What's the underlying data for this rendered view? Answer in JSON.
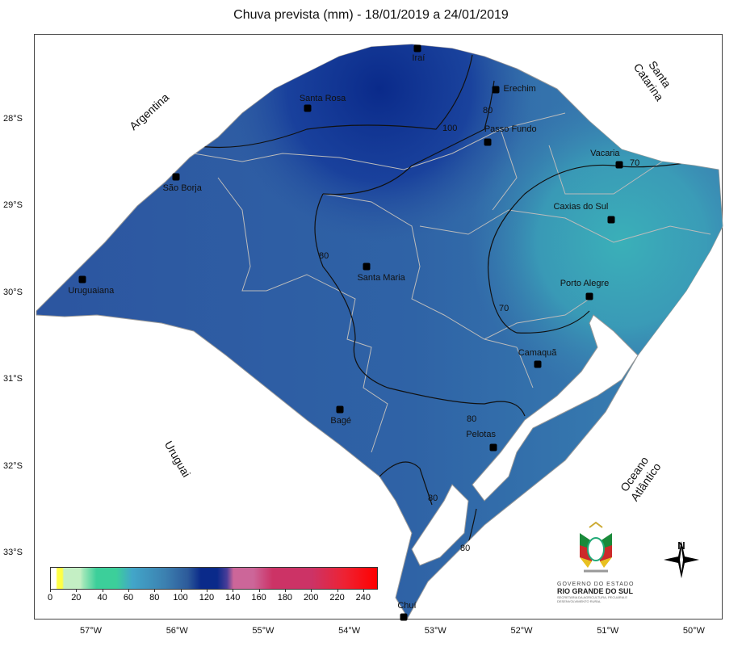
{
  "title": "Chuva prevista (mm) - 18/01/2019 a 24/01/2019",
  "lon_ticks": [
    "57°W",
    "56°W",
    "55°W",
    "54°W",
    "53°W",
    "52°W",
    "51°W",
    "50°W"
  ],
  "lat_ticks": [
    "28°S",
    "29°S",
    "30°S",
    "31°S",
    "32°S",
    "33°S"
  ],
  "regions": {
    "argentina": "Argentina",
    "santa_catarina": "Santa Catarina",
    "uruguai": "Uruguai",
    "oceano": "Oceano Atlântico"
  },
  "cities": [
    {
      "name": "Iraí",
      "lon": 53.21,
      "lat": 27.18
    },
    {
      "name": "Santa Rosa",
      "lon": 54.49,
      "lat": 27.87
    },
    {
      "name": "Erechim",
      "lon": 52.3,
      "lat": 27.66
    },
    {
      "name": "Passo Fundo",
      "lon": 52.4,
      "lat": 28.26
    },
    {
      "name": "Vacaria",
      "lon": 50.87,
      "lat": 28.52
    },
    {
      "name": "São Borja",
      "lon": 56.02,
      "lat": 28.66
    },
    {
      "name": "Caxias do Sul",
      "lon": 50.96,
      "lat": 29.15
    },
    {
      "name": "Santa Maria",
      "lon": 53.8,
      "lat": 29.69
    },
    {
      "name": "Uruguaiana",
      "lon": 57.1,
      "lat": 29.84
    },
    {
      "name": "Porto Alegre",
      "lon": 51.22,
      "lat": 30.04
    },
    {
      "name": "Camaquã",
      "lon": 51.82,
      "lat": 30.82
    },
    {
      "name": "Bagé",
      "lon": 54.11,
      "lat": 31.34
    },
    {
      "name": "Pelotas",
      "lon": 52.33,
      "lat": 31.78
    },
    {
      "name": "Chuí",
      "lon": 53.37,
      "lat": 33.74
    }
  ],
  "contours": [
    "100",
    "80",
    "80",
    "70",
    "70",
    "80",
    "80",
    "80"
  ],
  "colorbar": {
    "ticks": [
      "0",
      "20",
      "40",
      "60",
      "80",
      "100",
      "120",
      "140",
      "160",
      "180",
      "200",
      "220",
      "240"
    ],
    "range": [
      0,
      250
    ]
  },
  "logo": {
    "line1": "GOVERNO DO ESTADO",
    "line2": "RIO GRANDE DO SUL",
    "line3": "SECRETARIA DA AGRICULTURA, PECUÁRIA E DESENVOLVIMENTO RURAL"
  },
  "north": "N"
}
